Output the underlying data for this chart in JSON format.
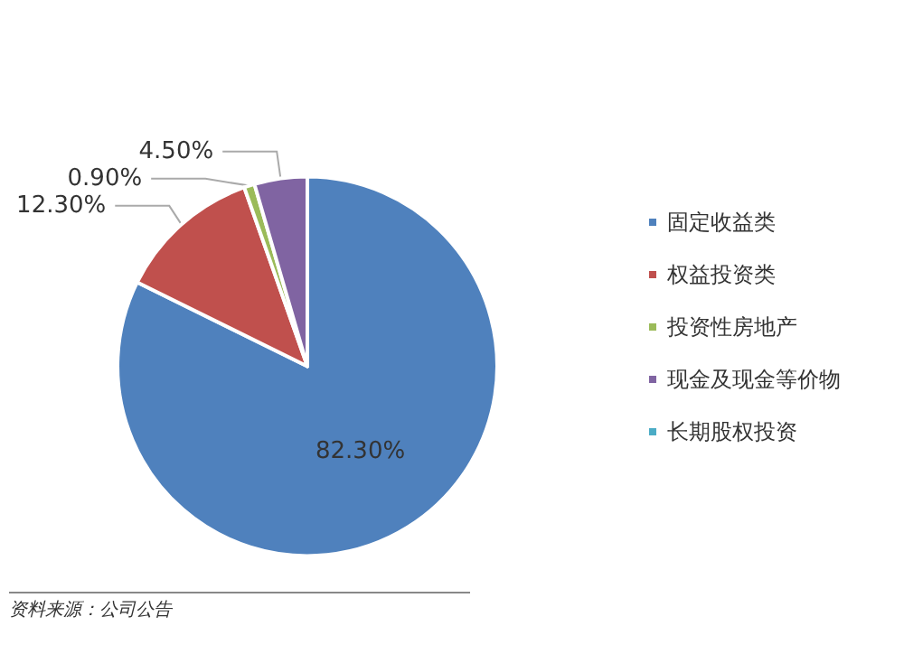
{
  "chart_data": {
    "type": "pie",
    "categories": [
      "固定收益类",
      "权益投资类",
      "投资性房地产",
      "现金及现金等价物",
      "长期股权投资"
    ],
    "values": [
      82.3,
      12.3,
      0.9,
      4.5,
      0
    ],
    "value_labels": [
      "82.30%",
      "12.30%",
      "0.90%",
      "4.50%",
      null
    ],
    "colors": [
      "#4f81bd",
      "#c0504d",
      "#9bbb59",
      "#8064a2",
      "#4bacc6"
    ],
    "legend": "right",
    "annotations": [
      "资料来源：公司公告"
    ]
  }
}
